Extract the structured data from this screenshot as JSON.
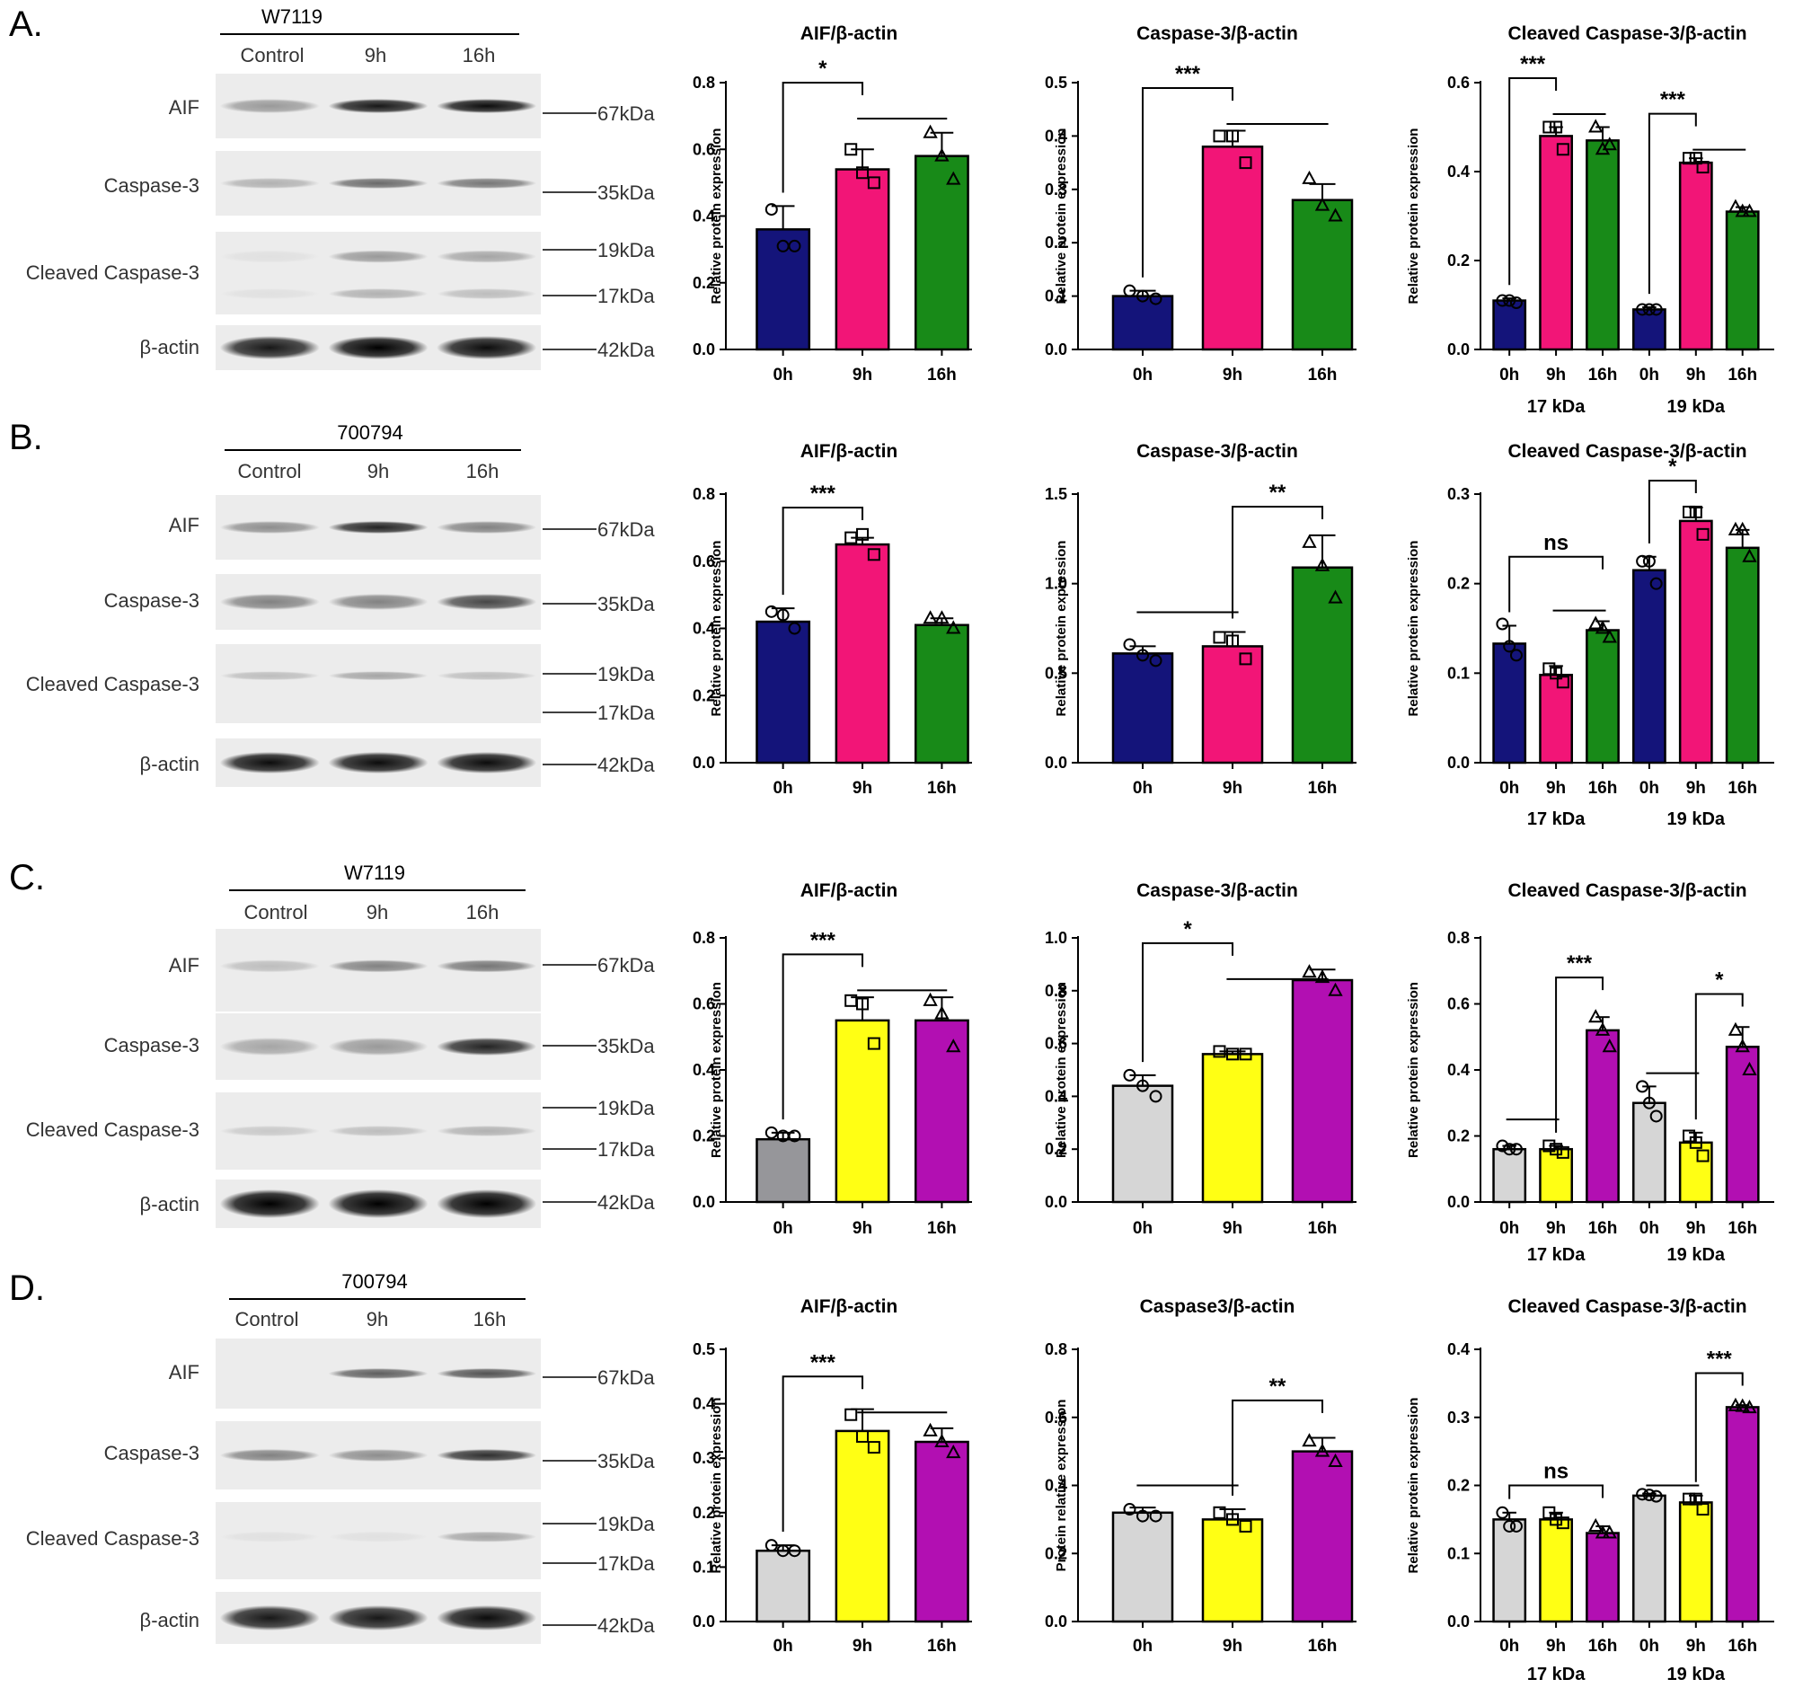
{
  "colors": {
    "navy": "#14147a",
    "pink": "#f21577",
    "green": "#188a18",
    "grey_dark": "#96969a",
    "grey_light": "#d6d6d6",
    "yellow": "#ffff14",
    "purple": "#b20fb2"
  },
  "panels": [
    {
      "letter": "A.",
      "blot": {
        "strain": "W7119",
        "lanes": [
          "Control",
          "9h",
          "16h"
        ],
        "rows": [
          "AIF",
          "Caspase-3",
          "Cleaved Caspase-3",
          "β-actin"
        ],
        "markers": [
          "67kDa",
          "35kDa",
          "19kDa",
          "17kDa",
          "42kDa"
        ]
      }
    },
    {
      "letter": "B.",
      "blot": {
        "strain": "700794",
        "lanes": [
          "Control",
          "9h",
          "16h"
        ],
        "rows": [
          "AIF",
          "Caspase-3",
          "Cleaved Caspase-3",
          "β-actin"
        ],
        "markers": [
          "67kDa",
          "35kDa",
          "19kDa",
          "17kDa",
          "42kDa"
        ]
      }
    },
    {
      "letter": "C.",
      "blot": {
        "strain": "W7119",
        "lanes": [
          "Control",
          "9h",
          "16h"
        ],
        "rows": [
          "AIF",
          "Caspase-3",
          "Cleaved Caspase-3",
          "β-actin"
        ],
        "markers": [
          "67kDa",
          "35kDa",
          "19kDa",
          "17kDa",
          "42kDa"
        ]
      }
    },
    {
      "letter": "D.",
      "blot": {
        "strain": "700794",
        "lanes": [
          "Control",
          "9h",
          "16h"
        ],
        "rows": [
          "AIF",
          "Caspase-3",
          "Cleaved Caspase-3",
          "β-actin"
        ],
        "markers": [
          "67kDa",
          "35kDa",
          "19kDa",
          "17kDa",
          "42kDa"
        ]
      }
    }
  ],
  "chart_data": [
    {
      "id": "A1",
      "type": "bar",
      "title": "AIF/β-actin",
      "ylabel": "Relative protein  expression",
      "ylim": [
        0,
        0.8
      ],
      "yticks": [
        0,
        0.2,
        0.4,
        0.6,
        0.8
      ],
      "categories": [
        "0h",
        "9h",
        "16h"
      ],
      "values": [
        0.36,
        0.54,
        0.58
      ],
      "errors": [
        0.07,
        0.06,
        0.07
      ],
      "points": [
        [
          0.42,
          0.31,
          0.31
        ],
        [
          0.6,
          0.53,
          0.5
        ],
        [
          0.65,
          0.58,
          0.51
        ]
      ],
      "colors": [
        "navy",
        "pink",
        "green"
      ],
      "markers": [
        "circle",
        "square",
        "triangle"
      ],
      "sig": [
        {
          "label": "*",
          "from": 0,
          "to": 1,
          "y": 0.8,
          "sub_from": 1,
          "sub_to": 2
        }
      ]
    },
    {
      "id": "A2",
      "type": "bar",
      "title": "Caspase-3/β-actin",
      "ylabel": "Relative protein expression",
      "ylim": [
        0,
        0.5
      ],
      "yticks": [
        0,
        0.1,
        0.2,
        0.3,
        0.4,
        0.5
      ],
      "categories": [
        "0h",
        "9h",
        "16h"
      ],
      "values": [
        0.1,
        0.38,
        0.28
      ],
      "errors": [
        0.01,
        0.03,
        0.03
      ],
      "points": [
        [
          0.11,
          0.1,
          0.095
        ],
        [
          0.4,
          0.4,
          0.35
        ],
        [
          0.32,
          0.27,
          0.25
        ]
      ],
      "colors": [
        "navy",
        "pink",
        "green"
      ],
      "markers": [
        "circle",
        "square",
        "triangle"
      ],
      "sig": [
        {
          "label": "***",
          "from": 0,
          "to": 1,
          "y": 0.49,
          "sub_from": 1,
          "sub_to": 2
        }
      ]
    },
    {
      "id": "A3",
      "type": "grouped",
      "title": "Cleaved Caspase-3/β-actin",
      "ylabel": "Relative protein expression",
      "ylim": [
        0,
        0.6
      ],
      "yticks": [
        0,
        0.2,
        0.4,
        0.6
      ],
      "categories": [
        "0h",
        "9h",
        "16h",
        "0h",
        "9h",
        "16h"
      ],
      "groups": [
        "17 kDa",
        "19 kDa"
      ],
      "values": [
        0.11,
        0.48,
        0.47,
        0.09,
        0.42,
        0.31
      ],
      "errors": [
        0.005,
        0.02,
        0.03,
        0.005,
        0.01,
        0.01
      ],
      "points": [
        [
          0.11,
          0.11,
          0.105
        ],
        [
          0.5,
          0.5,
          0.45
        ],
        [
          0.5,
          0.45,
          0.46
        ],
        [
          0.09,
          0.09,
          0.09
        ],
        [
          0.43,
          0.43,
          0.41
        ],
        [
          0.32,
          0.31,
          0.31
        ]
      ],
      "colors": [
        "navy",
        "pink",
        "green",
        "navy",
        "pink",
        "green"
      ],
      "markers": [
        "circle",
        "square",
        "triangle",
        "circle",
        "square",
        "triangle"
      ],
      "sig": [
        {
          "label": "***",
          "from": 0,
          "to": 1,
          "y": 0.61,
          "sub_from": 1,
          "sub_to": 2
        },
        {
          "label": "***",
          "from": 3,
          "to": 4,
          "y": 0.53,
          "sub_from": 4,
          "sub_to": 5
        }
      ]
    },
    {
      "id": "B1",
      "type": "bar",
      "title": "AIF/β-actin",
      "ylabel": "Relative protein expression",
      "ylim": [
        0,
        0.8
      ],
      "yticks": [
        0,
        0.2,
        0.4,
        0.6,
        0.8
      ],
      "categories": [
        "0h",
        "9h",
        "16h"
      ],
      "values": [
        0.42,
        0.65,
        0.41
      ],
      "errors": [
        0.04,
        0.02,
        0.02
      ],
      "points": [
        [
          0.45,
          0.44,
          0.4
        ],
        [
          0.67,
          0.68,
          0.62
        ],
        [
          0.43,
          0.43,
          0.4
        ]
      ],
      "colors": [
        "navy",
        "pink",
        "green"
      ],
      "markers": [
        "circle",
        "square",
        "triangle"
      ],
      "sig": [
        {
          "label": "***",
          "from": 0,
          "to": 1,
          "y": 0.76
        }
      ]
    },
    {
      "id": "B2",
      "type": "bar",
      "title": "Caspase-3/β-actin",
      "ylabel": "Relative protein expression",
      "ylim": [
        0,
        1.5
      ],
      "yticks": [
        0,
        0.5,
        1.0,
        1.5
      ],
      "categories": [
        "0h",
        "9h",
        "16h"
      ],
      "values": [
        0.61,
        0.65,
        1.09
      ],
      "errors": [
        0.04,
        0.08,
        0.18
      ],
      "points": [
        [
          0.66,
          0.6,
          0.57
        ],
        [
          0.7,
          0.68,
          0.58
        ],
        [
          1.23,
          1.1,
          0.92
        ]
      ],
      "colors": [
        "navy",
        "pink",
        "green"
      ],
      "markers": [
        "circle",
        "square",
        "triangle"
      ],
      "sig": [
        {
          "label": "**",
          "from": 1,
          "to": 2,
          "y": 1.43,
          "sub_from": 0,
          "sub_to": 1,
          "sub_y": 0.84
        }
      ]
    },
    {
      "id": "B3",
      "type": "grouped",
      "title": "Cleaved Caspase-3/β-actin",
      "ylabel": "Relative protein expression",
      "ylim": [
        0,
        0.3
      ],
      "yticks": [
        0,
        0.1,
        0.2,
        0.3
      ],
      "categories": [
        "0h",
        "9h",
        "16h",
        "0h",
        "9h",
        "16h"
      ],
      "groups": [
        "17 kDa",
        "19 kDa"
      ],
      "values": [
        0.133,
        0.098,
        0.148,
        0.215,
        0.27,
        0.24
      ],
      "errors": [
        0.02,
        0.01,
        0.01,
        0.015,
        0.015,
        0.02
      ],
      "points": [
        [
          0.155,
          0.13,
          0.12
        ],
        [
          0.105,
          0.1,
          0.09
        ],
        [
          0.155,
          0.15,
          0.14
        ],
        [
          0.225,
          0.225,
          0.2
        ],
        [
          0.28,
          0.28,
          0.255
        ],
        [
          0.26,
          0.26,
          0.23
        ]
      ],
      "colors": [
        "navy",
        "pink",
        "green",
        "navy",
        "pink",
        "green"
      ],
      "markers": [
        "circle",
        "square",
        "triangle",
        "circle",
        "square",
        "triangle"
      ],
      "sig": [
        {
          "label": "ns",
          "from": 0,
          "to": 2,
          "y": 0.23,
          "sub_from": 1,
          "sub_to": 2,
          "sub_y": 0.17
        },
        {
          "label": "*",
          "from": 3,
          "to": 4,
          "y": 0.315
        }
      ]
    },
    {
      "id": "C1",
      "type": "bar",
      "title": "AIF/β-actin",
      "ylabel": "Relative protein  expression",
      "ylim": [
        0,
        0.8
      ],
      "yticks": [
        0,
        0.2,
        0.4,
        0.6,
        0.8
      ],
      "categories": [
        "0h",
        "9h",
        "16h"
      ],
      "values": [
        0.19,
        0.55,
        0.55
      ],
      "errors": [
        0.02,
        0.07,
        0.07
      ],
      "points": [
        [
          0.21,
          0.2,
          0.2
        ],
        [
          0.61,
          0.6,
          0.48
        ],
        [
          0.61,
          0.57,
          0.47
        ]
      ],
      "colors": [
        "grey_dark",
        "yellow",
        "purple"
      ],
      "markers": [
        "circle",
        "square",
        "triangle"
      ],
      "sig": [
        {
          "label": "***",
          "from": 0,
          "to": 1,
          "y": 0.75,
          "sub_from": 1,
          "sub_to": 2
        }
      ]
    },
    {
      "id": "C2",
      "type": "bar",
      "title": "Caspase-3/β-actin",
      "ylabel": "Relative protein expression",
      "ylim": [
        0,
        1.0
      ],
      "yticks": [
        0,
        0.2,
        0.4,
        0.6,
        0.8,
        1.0
      ],
      "categories": [
        "0h",
        "9h",
        "16h"
      ],
      "values": [
        0.44,
        0.56,
        0.84
      ],
      "errors": [
        0.04,
        0.01,
        0.04
      ],
      "points": [
        [
          0.48,
          0.44,
          0.4
        ],
        [
          0.57,
          0.56,
          0.56
        ],
        [
          0.87,
          0.85,
          0.8
        ]
      ],
      "colors": [
        "grey_light",
        "yellow",
        "purple"
      ],
      "markers": [
        "circle",
        "square",
        "triangle"
      ],
      "sig": [
        {
          "label": "*",
          "from": 0,
          "to": 1,
          "y": 0.98,
          "sub_from": 1,
          "sub_to": 2
        }
      ]
    },
    {
      "id": "C3",
      "type": "grouped",
      "title": "Cleaved Caspase-3/β-actin",
      "ylabel": "Relative protein expression",
      "ylim": [
        0,
        0.8
      ],
      "yticks": [
        0,
        0.2,
        0.4,
        0.6,
        0.8
      ],
      "categories": [
        "0h",
        "9h",
        "16h",
        "0h",
        "9h",
        "16h"
      ],
      "groups": [
        "17 kDa",
        "19 kDa"
      ],
      "values": [
        0.16,
        0.16,
        0.52,
        0.3,
        0.18,
        0.47
      ],
      "errors": [
        0.01,
        0.01,
        0.04,
        0.05,
        0.03,
        0.06
      ],
      "points": [
        [
          0.17,
          0.16,
          0.16
        ],
        [
          0.17,
          0.16,
          0.15
        ],
        [
          0.56,
          0.52,
          0.47
        ],
        [
          0.35,
          0.3,
          0.26
        ],
        [
          0.2,
          0.18,
          0.14
        ],
        [
          0.52,
          0.47,
          0.4
        ]
      ],
      "colors": [
        "grey_light",
        "yellow",
        "purple",
        "grey_light",
        "yellow",
        "purple"
      ],
      "markers": [
        "circle",
        "square",
        "triangle",
        "circle",
        "square",
        "triangle"
      ],
      "sig": [
        {
          "label": "***",
          "from": 1,
          "to": 2,
          "y": 0.68,
          "sub_from": 0,
          "sub_to": 1,
          "sub_y": 0.25
        },
        {
          "label": "*",
          "from": 4,
          "to": 5,
          "y": 0.63,
          "sub_from": 3,
          "sub_to": 4,
          "sub_y": 0.39
        }
      ]
    },
    {
      "id": "D1",
      "type": "bar",
      "title": "AIF/β-actin",
      "ylabel": "Relative protein expression",
      "ylim": [
        0,
        0.5
      ],
      "yticks": [
        0,
        0.1,
        0.2,
        0.3,
        0.4,
        0.5
      ],
      "categories": [
        "0h",
        "9h",
        "16h"
      ],
      "values": [
        0.13,
        0.35,
        0.33
      ],
      "errors": [
        0.01,
        0.04,
        0.025
      ],
      "points": [
        [
          0.14,
          0.13,
          0.13
        ],
        [
          0.38,
          0.34,
          0.32
        ],
        [
          0.35,
          0.33,
          0.31
        ]
      ],
      "colors": [
        "grey_light",
        "yellow",
        "purple"
      ],
      "markers": [
        "circle",
        "square",
        "triangle"
      ],
      "sig": [
        {
          "label": "***",
          "from": 0,
          "to": 1,
          "y": 0.45,
          "sub_from": 1,
          "sub_to": 2
        }
      ]
    },
    {
      "id": "D2",
      "type": "bar",
      "title": "Caspase3/β-actin",
      "ylabel": "Protein relative expression",
      "ylim": [
        0,
        0.8
      ],
      "yticks": [
        0,
        0.2,
        0.4,
        0.6,
        0.8
      ],
      "categories": [
        "0h",
        "9h",
        "16h"
      ],
      "values": [
        0.32,
        0.3,
        0.5
      ],
      "errors": [
        0.015,
        0.03,
        0.04
      ],
      "points": [
        [
          0.33,
          0.31,
          0.31
        ],
        [
          0.32,
          0.3,
          0.28
        ],
        [
          0.53,
          0.5,
          0.47
        ]
      ],
      "colors": [
        "grey_light",
        "yellow",
        "purple"
      ],
      "markers": [
        "circle",
        "square",
        "triangle"
      ],
      "sig": [
        {
          "label": "**",
          "from": 1,
          "to": 2,
          "y": 0.65,
          "sub_from": 0,
          "sub_to": 1,
          "sub_y": 0.4
        }
      ]
    },
    {
      "id": "D3",
      "type": "grouped",
      "title": "Cleaved Caspase-3/β-actin",
      "ylabel": "Relative protein expression",
      "ylim": [
        0,
        0.4
      ],
      "yticks": [
        0,
        0.1,
        0.2,
        0.3,
        0.4
      ],
      "categories": [
        "0h",
        "9h",
        "16h",
        "0h",
        "9h",
        "16h"
      ],
      "groups": [
        "17 kDa",
        "19 kDa"
      ],
      "values": [
        0.15,
        0.15,
        0.13,
        0.185,
        0.175,
        0.315
      ],
      "errors": [
        0.01,
        0.01,
        0.01,
        0.003,
        0.01,
        0.003
      ],
      "points": [
        [
          0.16,
          0.14,
          0.14
        ],
        [
          0.16,
          0.15,
          0.145
        ],
        [
          0.14,
          0.13,
          0.13
        ],
        [
          0.187,
          0.186,
          0.184
        ],
        [
          0.18,
          0.18,
          0.165
        ],
        [
          0.317,
          0.316,
          0.314
        ]
      ],
      "colors": [
        "grey_light",
        "yellow",
        "purple",
        "grey_light",
        "yellow",
        "purple"
      ],
      "markers": [
        "circle",
        "square",
        "triangle",
        "circle",
        "square",
        "triangle"
      ],
      "sig": [
        {
          "label": "ns",
          "from": 0,
          "to": 2,
          "y": 0.2
        },
        {
          "label": "***",
          "from": 4,
          "to": 5,
          "y": 0.365,
          "sub_from": 3,
          "sub_to": 4,
          "sub_y": 0.2
        }
      ]
    }
  ]
}
